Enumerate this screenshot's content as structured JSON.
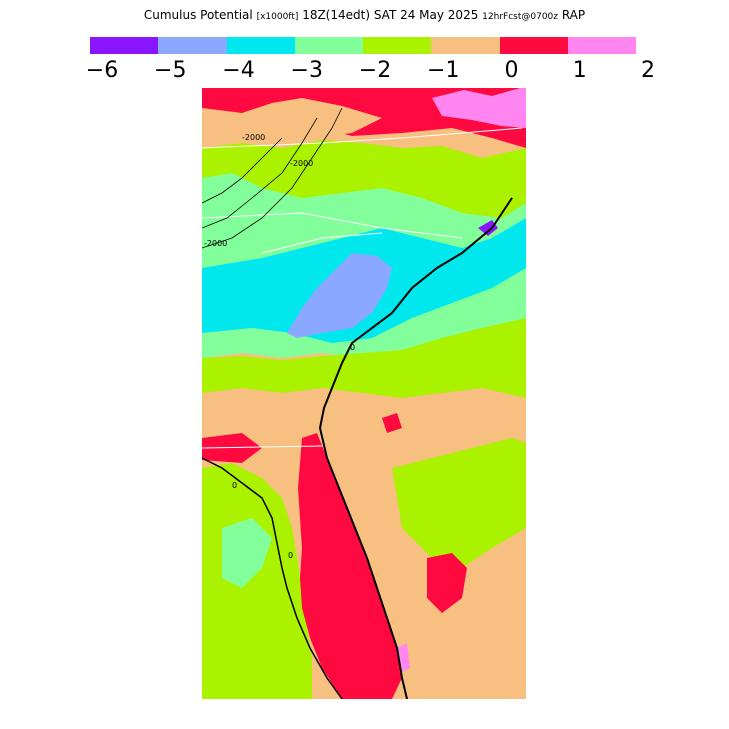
{
  "header": {
    "title_main": "Cumulus Potential",
    "title_unit": "[x1000ft]",
    "title_time": "18Z(14edt) SAT 24 May 2025",
    "title_fcst": "12hrFcst@0700z",
    "title_model": "RAP"
  },
  "legend": {
    "ticks": [
      "−6",
      "−5",
      "−4",
      "−3",
      "−2",
      "−1",
      "0",
      "1",
      "2"
    ],
    "colors": [
      "#8a16ff",
      "#8aa8ff",
      "#00e8ee",
      "#82ff9a",
      "#aaf200",
      "#f8c080",
      "#ff0a40",
      "#ff86f0"
    ]
  },
  "map": {
    "contour_labels": [
      "-2000",
      "-2000",
      "-2000",
      "0",
      "0",
      "0"
    ],
    "colors": {
      "purple": "#8a16ff",
      "blue": "#8aa8ff",
      "cyan": "#00e8ee",
      "green": "#82ff9a",
      "lime": "#aaf200",
      "tan": "#f8c080",
      "red": "#ff0a40",
      "pink": "#ff86f0"
    }
  }
}
